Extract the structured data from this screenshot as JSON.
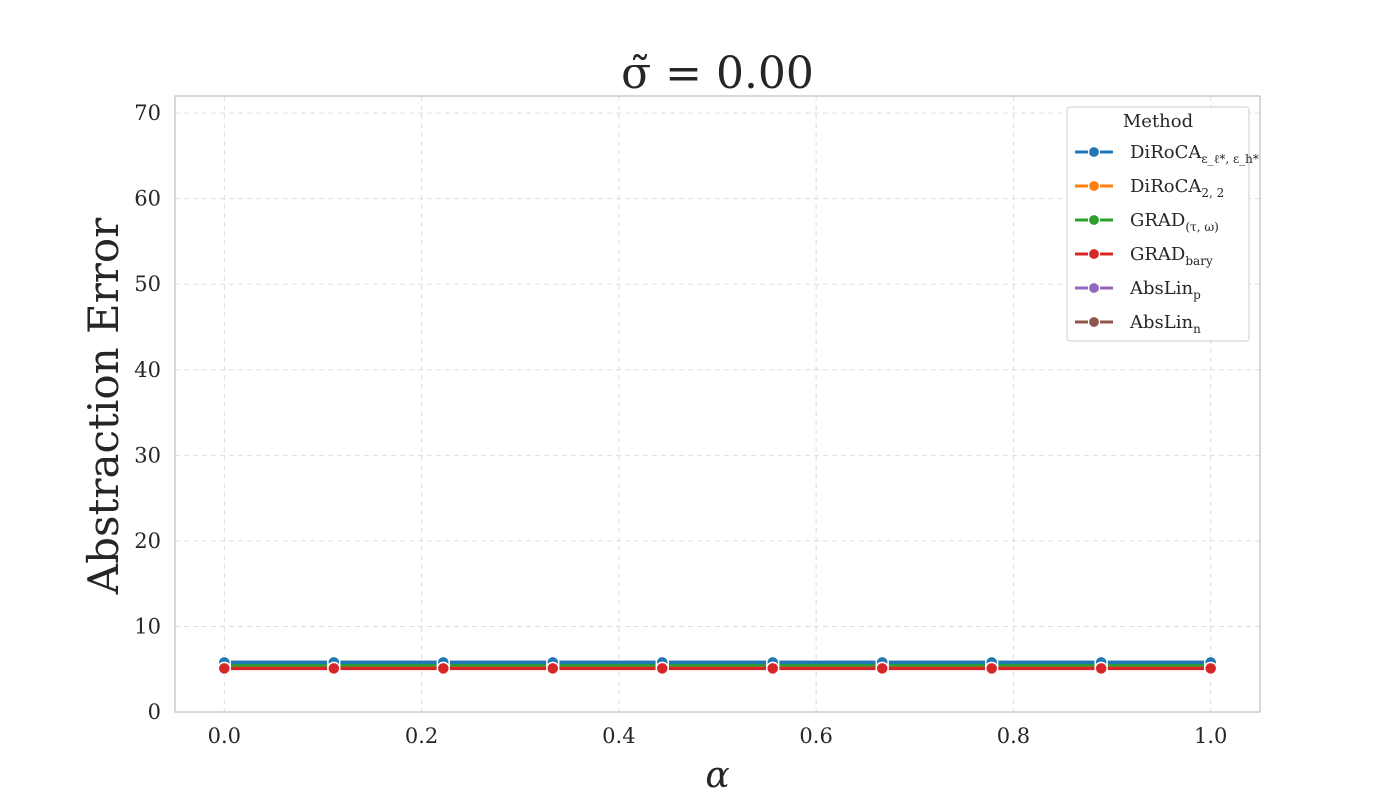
{
  "chart_data": {
    "type": "line",
    "title": "σ̃ = 0.00",
    "xlabel": "α",
    "ylabel": "Abstraction Error",
    "xlim": [
      -0.05,
      1.05
    ],
    "ylim": [
      0,
      72
    ],
    "xticks": [
      0.0,
      0.2,
      0.4,
      0.6,
      0.8,
      1.0
    ],
    "xtick_labels": [
      "0.0",
      "0.2",
      "0.4",
      "0.6",
      "0.8",
      "1.0"
    ],
    "yticks": [
      0,
      10,
      20,
      30,
      40,
      50,
      60,
      70
    ],
    "ytick_labels": [
      "0",
      "10",
      "20",
      "30",
      "40",
      "50",
      "60",
      "70"
    ],
    "grid": true,
    "legend_title": "Method",
    "legend_position": "top-right",
    "x": [
      0.0,
      0.111,
      0.222,
      0.333,
      0.444,
      0.556,
      0.667,
      0.778,
      0.889,
      1.0
    ],
    "series": [
      {
        "name": "DiRoCA",
        "subscript": "ε_ℓ*, ε_h*",
        "color": "#1f77b4",
        "values": [
          5.8,
          5.8,
          5.8,
          5.8,
          5.8,
          5.8,
          5.8,
          5.8,
          5.8,
          5.8
        ]
      },
      {
        "name": "DiRoCA",
        "subscript": "2, 2",
        "color": "#ff7f0e",
        "values": [
          5.6,
          5.6,
          5.6,
          5.6,
          5.6,
          5.6,
          5.6,
          5.6,
          5.6,
          5.6
        ]
      },
      {
        "name": "GRAD",
        "subscript": "(τ, ω)",
        "color": "#2ca02c",
        "values": [
          5.5,
          5.5,
          5.5,
          5.5,
          5.5,
          5.5,
          5.5,
          5.5,
          5.5,
          5.5
        ]
      },
      {
        "name": "GRAD",
        "subscript": "bary",
        "color": "#d62728",
        "values": [
          5.1,
          5.1,
          5.1,
          5.1,
          5.1,
          5.1,
          5.1,
          5.1,
          5.1,
          5.1
        ]
      },
      {
        "name": "AbsLin",
        "subscript": "p",
        "color": "#9467bd",
        "values": [
          5.8,
          5.8,
          5.8,
          5.8,
          5.8,
          5.8,
          5.8,
          5.8,
          5.8,
          5.8
        ]
      },
      {
        "name": "AbsLin",
        "subscript": "n",
        "color": "#8c564b",
        "values": [
          5.7,
          5.7,
          5.7,
          5.7,
          5.7,
          5.7,
          5.7,
          5.7,
          5.7,
          5.7
        ]
      }
    ],
    "draw_order": [
      4,
      5,
      1,
      2,
      0,
      3
    ]
  }
}
